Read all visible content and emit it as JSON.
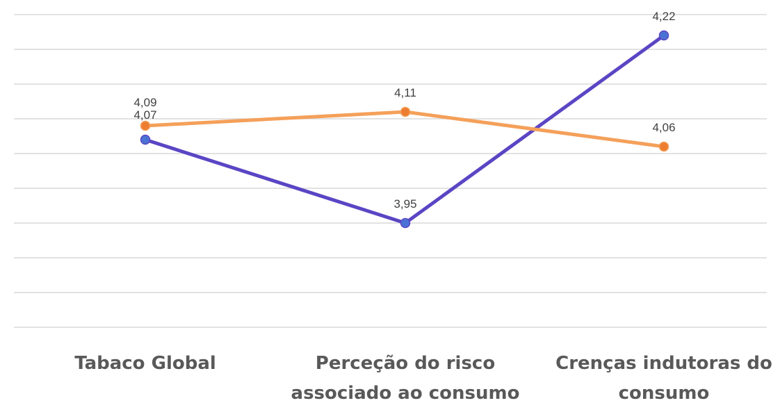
{
  "chart_data": {
    "type": "line",
    "categories": [
      [
        "Tabaco Global"
      ],
      [
        "Perceção do risco",
        "associado ao consumo"
      ],
      [
        "Crenças indutoras do",
        "consumo"
      ]
    ],
    "series": [
      {
        "values": [
          4.07,
          3.95,
          4.22
        ],
        "labels": [
          "4,07",
          "3,95",
          "4,22"
        ],
        "color": "#5b45c4",
        "marker_color": "#4a72d4"
      },
      {
        "values": [
          4.09,
          4.11,
          4.06
        ],
        "labels": [
          "4,09",
          "4,11",
          "4,06"
        ],
        "color": "#f4a05a",
        "marker_color": "#ed7d31"
      }
    ],
    "ylim": [
      3.8,
      4.25
    ],
    "grid": true,
    "legend": "none"
  }
}
